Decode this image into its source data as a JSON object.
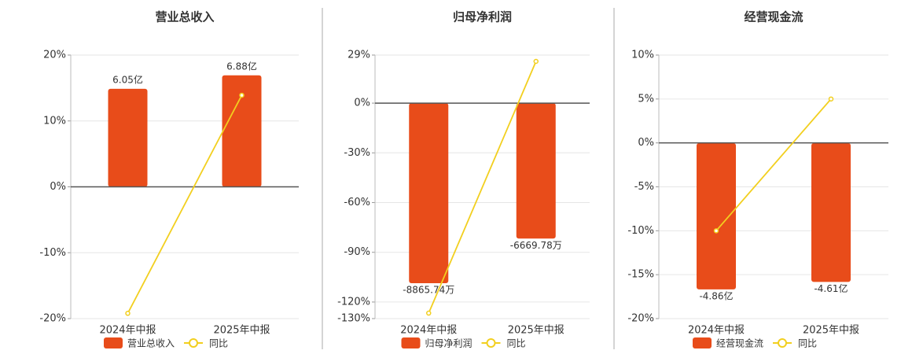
{
  "chart_data": [
    {
      "type": "bar",
      "title": "营业总收入",
      "categories": [
        "2024年中报",
        "2025年中报"
      ],
      "series": [
        {
          "name": "营业总收入",
          "color": "#e84c1a",
          "axis": "y2",
          "values": [
            6.05,
            6.88
          ],
          "value_labels": [
            "6.05亿",
            "6.88亿"
          ]
        },
        {
          "name": "同比",
          "type": "line",
          "color": "#f2cf1f",
          "values": [
            -19.2,
            13.9
          ]
        }
      ],
      "ylim": [
        -20,
        20
      ],
      "yticks": [
        {
          "value": 20,
          "label": "20%"
        },
        {
          "value": 10,
          "label": "10%"
        },
        {
          "value": 0,
          "label": "0%"
        },
        {
          "value": -10,
          "label": "-10%"
        },
        {
          "value": -20,
          "label": "-20%"
        }
      ],
      "y2lim": [
        -8.13,
        8.13
      ],
      "grid": true,
      "legend": "bottom"
    },
    {
      "type": "bar",
      "title": "归母净利润",
      "categories": [
        "2024年中报",
        "2025年中报"
      ],
      "series": [
        {
          "name": "归母净利润",
          "color": "#e84c1a",
          "axis": "y2",
          "values": [
            -8865.74,
            -6669.78
          ],
          "value_labels": [
            "-8865.74万",
            "-6669.78万"
          ]
        },
        {
          "name": "同比",
          "type": "line",
          "color": "#f2cf1f",
          "values": [
            -126.7,
            25.2
          ]
        }
      ],
      "ylim": [
        -130,
        29
      ],
      "yticks": [
        {
          "value": 29,
          "label": "29%"
        },
        {
          "value": 0,
          "label": "0%"
        },
        {
          "value": -30,
          "label": "-30%"
        },
        {
          "value": -60,
          "label": "-60%"
        },
        {
          "value": -90,
          "label": "-90%"
        },
        {
          "value": -120,
          "label": "-120%"
        },
        {
          "value": -130,
          "label": "-130%"
        }
      ],
      "y2lim": [
        -10608,
        2362
      ],
      "grid": true,
      "legend": "bottom"
    },
    {
      "type": "bar",
      "title": "经营现金流",
      "categories": [
        "2024年中报",
        "2025年中报"
      ],
      "series": [
        {
          "name": "经营现金流",
          "color": "#e84c1a",
          "axis": "y2",
          "values": [
            -4.86,
            -4.61
          ],
          "value_labels": [
            "-4.86亿",
            "-4.61亿"
          ]
        },
        {
          "name": "同比",
          "type": "line",
          "color": "#f2cf1f",
          "values": [
            -10.0,
            5.0
          ]
        }
      ],
      "ylim": [
        -20,
        10
      ],
      "yticks": [
        {
          "value": 10,
          "label": "10%"
        },
        {
          "value": 5,
          "label": "5%"
        },
        {
          "value": 0,
          "label": "0%"
        },
        {
          "value": -5,
          "label": "-5%"
        },
        {
          "value": -10,
          "label": "-10%"
        },
        {
          "value": -15,
          "label": "-15%"
        },
        {
          "value": -20,
          "label": "-20%"
        }
      ],
      "y2lim": [
        -5.83,
        2.93
      ],
      "grid": true,
      "legend": "bottom"
    }
  ]
}
